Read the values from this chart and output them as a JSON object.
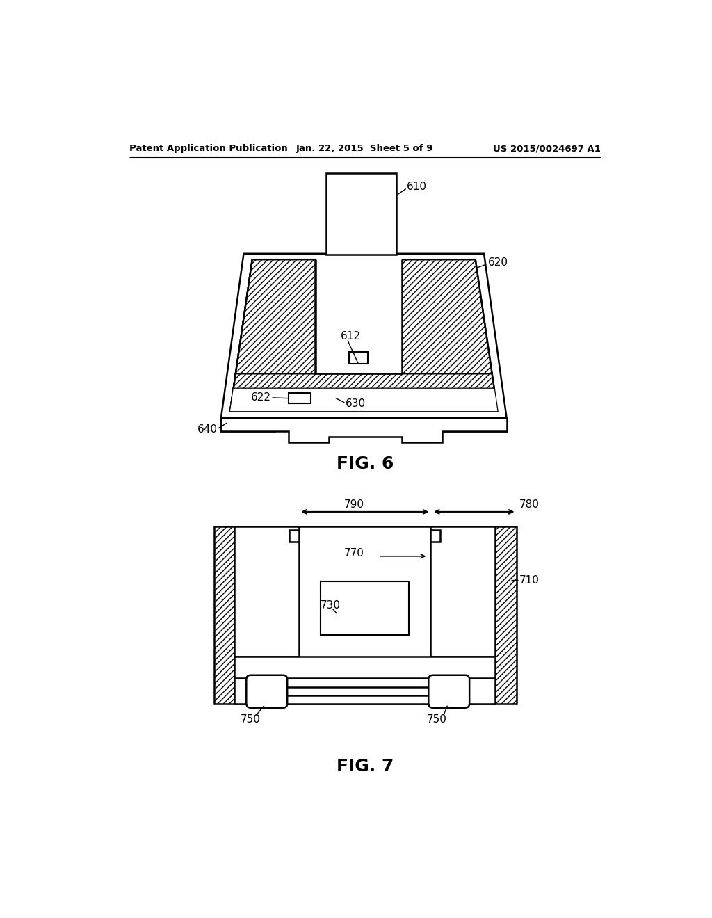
{
  "background_color": "#ffffff",
  "header_left": "Patent Application Publication",
  "header_center": "Jan. 22, 2015  Sheet 5 of 9",
  "header_right": "US 2015/0024697 A1",
  "fig6_label": "FIG. 6",
  "fig7_label": "FIG. 7",
  "label_610": "610",
  "label_612": "612",
  "label_620": "620",
  "label_622": "622",
  "label_630": "630",
  "label_640": "640",
  "label_710": "710",
  "label_730": "730",
  "label_750a": "750",
  "label_750b": "750",
  "label_770": "770",
  "label_780": "780",
  "label_790": "790"
}
